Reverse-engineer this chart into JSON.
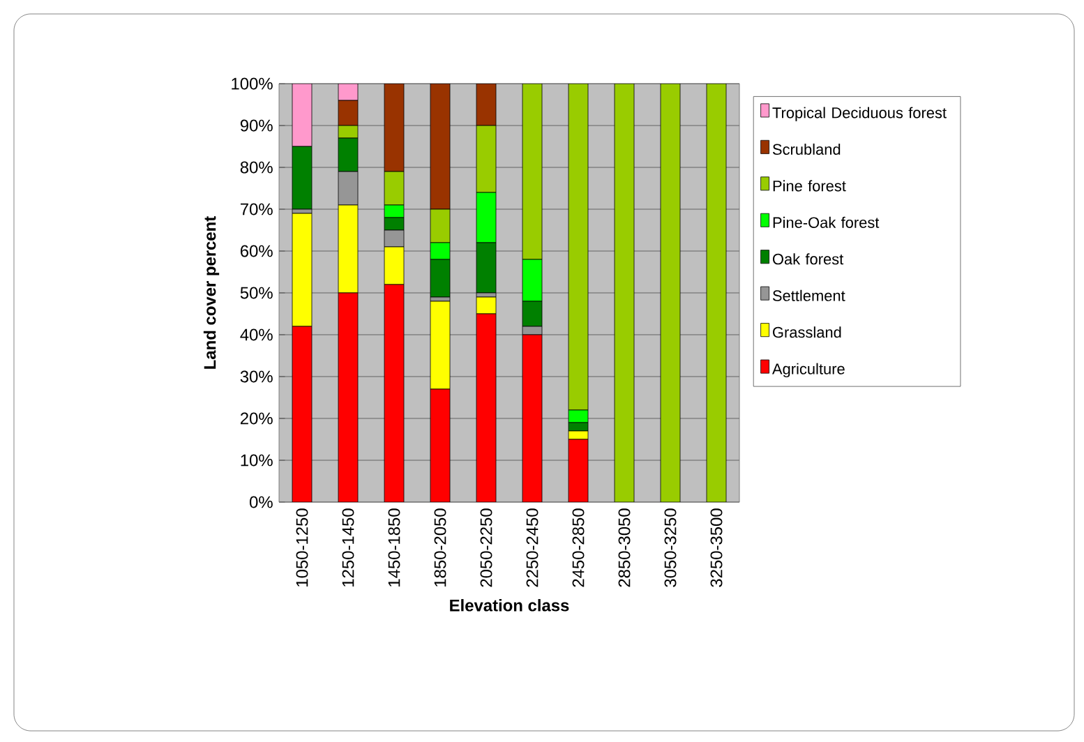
{
  "chart_data": {
    "type": "bar",
    "stacked": true,
    "xlabel": "Elevation class",
    "ylabel": "Land cover percent",
    "categories": [
      "1050-1250",
      "1250-1450",
      "1450-1850",
      "1850-2050",
      "2050-2250",
      "2250-2450",
      "2450-2850",
      "2850-3050",
      "3050-3250",
      "3250-3500"
    ],
    "series": [
      {
        "name": "Agriculture",
        "color": "#ff0000",
        "values": [
          42,
          50,
          52,
          27,
          45,
          40,
          15,
          0,
          0,
          0
        ]
      },
      {
        "name": "Grassland",
        "color": "#ffff00",
        "values": [
          27,
          21,
          9,
          21,
          4,
          0,
          2,
          0,
          0,
          0
        ]
      },
      {
        "name": "Settlement",
        "color": "#969696",
        "values": [
          1,
          8,
          4,
          1,
          1,
          2,
          0,
          0,
          0,
          0
        ]
      },
      {
        "name": "Oak forest",
        "color": "#008000",
        "values": [
          15,
          8,
          3,
          9,
          12,
          6,
          2,
          0,
          0,
          0
        ]
      },
      {
        "name": "Pine-Oak forest",
        "color": "#00ff00",
        "values": [
          0,
          0,
          3,
          4,
          12,
          10,
          3,
          0,
          0,
          0
        ]
      },
      {
        "name": "Pine forest",
        "color": "#99cc00",
        "values": [
          0,
          3,
          8,
          8,
          16,
          42,
          78,
          100,
          100,
          100
        ]
      },
      {
        "name": "Scrubland",
        "color": "#993300",
        "values": [
          0,
          6,
          21,
          30,
          10,
          0,
          0,
          0,
          0,
          0
        ]
      },
      {
        "name": "Tropical Deciduous forest",
        "color": "#ff99cc",
        "values": [
          15,
          4,
          0,
          0,
          0,
          0,
          0,
          0,
          0,
          0
        ]
      }
    ],
    "ylim": [
      0,
      100
    ],
    "yticks": [
      {
        "value": 0,
        "label": "0%"
      },
      {
        "value": 10,
        "label": "10%"
      },
      {
        "value": 20,
        "label": "20%"
      },
      {
        "value": 30,
        "label": "30%"
      },
      {
        "value": 40,
        "label": "40%"
      },
      {
        "value": 50,
        "label": "50%"
      },
      {
        "value": 60,
        "label": "60%"
      },
      {
        "value": 70,
        "label": "70%"
      },
      {
        "value": 80,
        "label": "80%"
      },
      {
        "value": 90,
        "label": "90%"
      },
      {
        "value": 100,
        "label": "100%"
      }
    ],
    "grid": "y",
    "legend": "right"
  }
}
